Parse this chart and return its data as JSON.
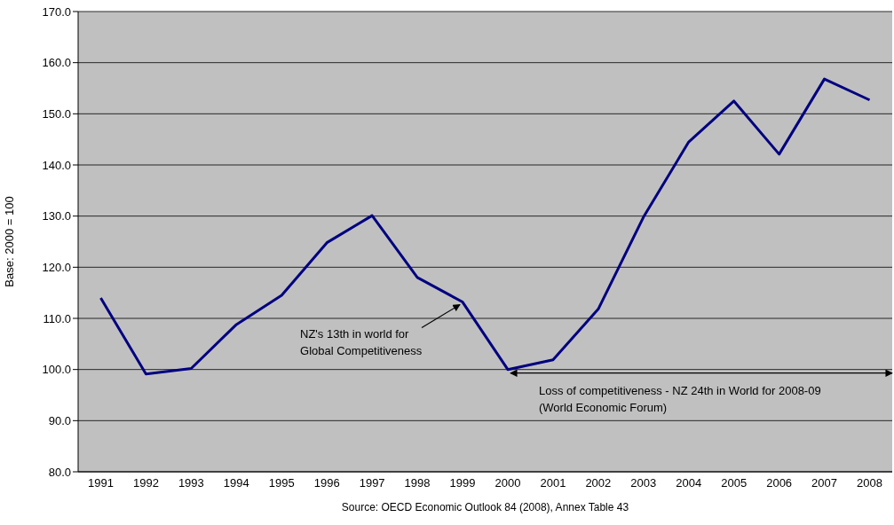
{
  "chart_data": {
    "type": "line",
    "ylabel": "Base: 2000 = 100",
    "categories": [
      "1991",
      "1992",
      "1993",
      "1994",
      "1995",
      "1996",
      "1997",
      "1998",
      "1999",
      "2000",
      "2001",
      "2002",
      "2003",
      "2004",
      "2005",
      "2006",
      "2007",
      "2008"
    ],
    "series": [
      {
        "color": "#000080",
        "values": [
          114.0,
          99.1,
          100.2,
          108.8,
          114.5,
          124.8,
          130.1,
          118.0,
          113.2,
          100.0,
          101.9,
          111.8,
          129.8,
          144.5,
          152.5,
          142.1,
          156.8,
          152.7
        ]
      }
    ],
    "ylim": [
      80,
      170
    ],
    "yticks": [
      {
        "value": 80,
        "label": "80.0"
      },
      {
        "value": 90,
        "label": "90.0"
      },
      {
        "value": 100,
        "label": "100.0"
      },
      {
        "value": 110,
        "label": "110.0"
      },
      {
        "value": 120,
        "label": "120.0"
      },
      {
        "value": 130,
        "label": "130.0"
      },
      {
        "value": 140,
        "label": "140.0"
      },
      {
        "value": 150,
        "label": "150.0"
      },
      {
        "value": 160,
        "label": "160.0"
      },
      {
        "value": 170,
        "label": "170.0"
      }
    ],
    "grid": "y",
    "marker": "none",
    "line_style": "solid",
    "annotations": [
      {
        "text": "NZ's 13th in world for\nGlobal Competitiveness",
        "x": "1999",
        "y": 113.2
      },
      {
        "text": "Loss of competitiveness - NZ 24th in World for 2008-09\n(World Economic Forum)",
        "x": "2000",
        "y": 99.3
      },
      "Source: OECD Economic Outlook 84 (2008), Annex Table 43"
    ]
  }
}
